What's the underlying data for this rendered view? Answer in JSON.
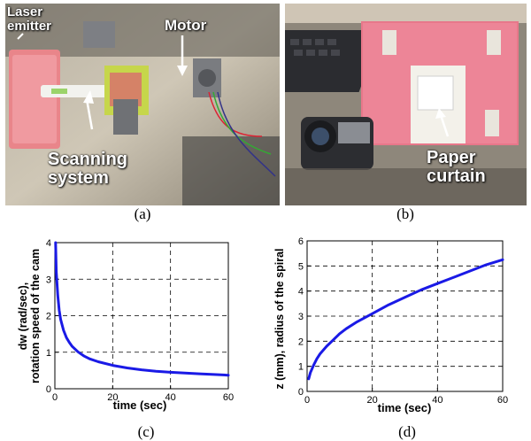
{
  "panels": {
    "a": {
      "caption": "(a)",
      "labels": {
        "laser": "Laser\nemitter",
        "motor": "Motor",
        "scanning": "Scanning\nsystem"
      }
    },
    "b": {
      "caption": "(b)",
      "labels": {
        "paper": "Paper\ncurtain"
      }
    }
  },
  "chart_data": [
    {
      "id": "c",
      "caption": "(c)",
      "type": "line",
      "xlabel": "time (sec)",
      "ylabel": "dw (rad/sec),\nrotation speed of the cam",
      "xlim": [
        0,
        60
      ],
      "ylim": [
        0,
        4
      ],
      "xticks": [
        "0",
        "20",
        "40",
        "60"
      ],
      "yticks": [
        "0",
        "1",
        "2",
        "3",
        "4"
      ],
      "grid": true,
      "line_color": "#1a1ae6",
      "series": [
        {
          "x": [
            0.25,
            0.5,
            1,
            1.5,
            2,
            3,
            4,
            5,
            6,
            8,
            10,
            12,
            15,
            20,
            25,
            30,
            35,
            40,
            45,
            50,
            55,
            60
          ],
          "y": [
            4.0,
            3.2,
            2.55,
            2.15,
            1.9,
            1.6,
            1.4,
            1.27,
            1.16,
            1.01,
            0.9,
            0.82,
            0.74,
            0.64,
            0.57,
            0.52,
            0.48,
            0.45,
            0.43,
            0.41,
            0.39,
            0.37
          ]
        }
      ]
    },
    {
      "id": "d",
      "caption": "(d)",
      "type": "line",
      "xlabel": "time (sec)",
      "ylabel": "z (mm), radius of the spiral",
      "xlim": [
        0,
        60
      ],
      "ylim": [
        0,
        6
      ],
      "xticks": [
        "0",
        "20",
        "40",
        "60"
      ],
      "yticks": [
        "0",
        "1",
        "2",
        "3",
        "4",
        "5",
        "6"
      ],
      "grid": true,
      "line_color": "#1a1ae6",
      "series": [
        {
          "x": [
            0.5,
            1,
            2,
            3,
            4,
            5,
            6,
            8,
            10,
            12,
            15,
            20,
            25,
            30,
            35,
            40,
            45,
            50,
            55,
            60
          ],
          "y": [
            0.5,
            0.75,
            1.05,
            1.3,
            1.5,
            1.65,
            1.8,
            2.05,
            2.3,
            2.5,
            2.75,
            3.1,
            3.45,
            3.75,
            4.05,
            4.3,
            4.55,
            4.8,
            5.05,
            5.25
          ]
        }
      ]
    }
  ]
}
